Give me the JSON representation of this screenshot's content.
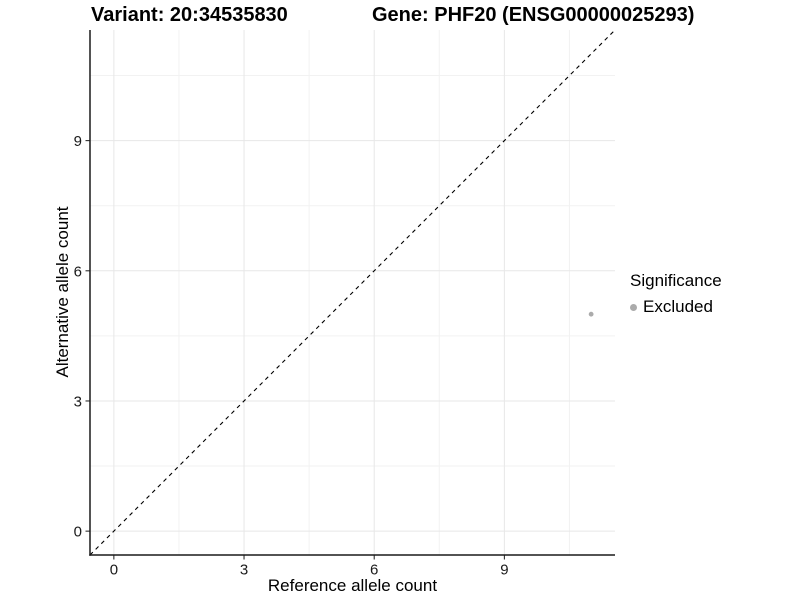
{
  "titles": {
    "variant": "Variant: 20:34535830",
    "gene": "Gene: PHF20 (ENSG00000025293)"
  },
  "chart_data": {
    "type": "scatter",
    "title_left": "Variant: 20:34535830",
    "title_right": "Gene: PHF20 (ENSG00000025293)",
    "xlabel": "Reference allele count",
    "ylabel": "Alternative allele count",
    "xlim": [
      -0.55,
      11.55
    ],
    "ylim": [
      -0.55,
      11.55
    ],
    "xticks": [
      0,
      3,
      6,
      9
    ],
    "yticks": [
      0,
      3,
      6,
      9
    ],
    "minor_ticks": [
      1.5,
      4.5,
      7.5,
      10.5
    ],
    "grid": true,
    "identity_line": {
      "style": "dashed",
      "color": "#000000"
    },
    "series": [
      {
        "name": "Excluded",
        "color": "#ababab",
        "points": [
          {
            "x": 11,
            "y": 5
          }
        ]
      }
    ],
    "legend": {
      "title": "Significance",
      "position": "right",
      "entries": [
        {
          "label": "Excluded",
          "color": "#ababab"
        }
      ]
    }
  },
  "colors": {
    "background": "#ffffff",
    "panel_background": "#ffffff",
    "grid_major": "#e7e7e7",
    "grid_minor": "#f2f2f2",
    "axis_line": "#1a1a1a",
    "text": "#000000",
    "point": "#ababab"
  }
}
